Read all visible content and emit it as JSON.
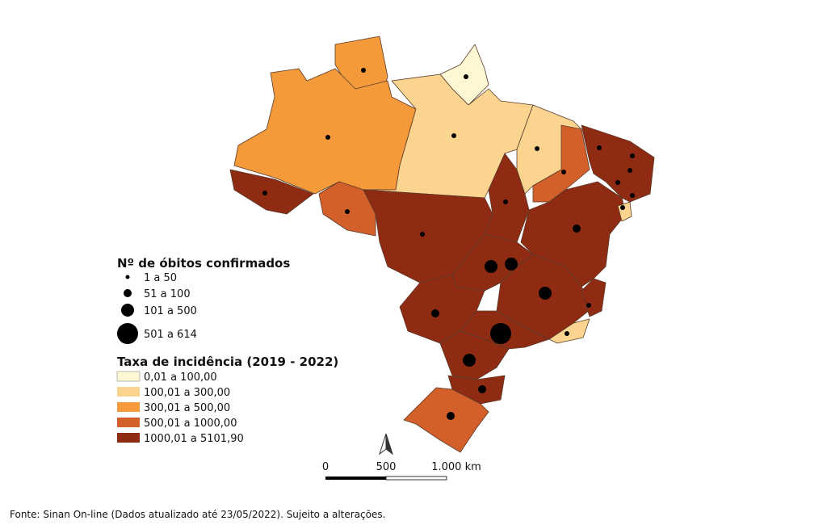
{
  "legend_deaths": {
    "title": "Nº de óbitos confirmados",
    "items": [
      "1 a 50",
      "51 a 100",
      "101 a 500",
      "501 a 614"
    ]
  },
  "legend_incidence": {
    "title": "Taxa de incidência (2019 - 2022)",
    "items": [
      "0,01 a 100,00",
      "100,01 a 300,00",
      "300,01 a 500,00",
      "500,01 a 1000,00",
      "1000,01 a 5101,90"
    ]
  },
  "scale_bar": {
    "labels": [
      "0",
      "500",
      "1.000 km"
    ]
  },
  "source": "Fonte: Sinan On-line (Dados atualizado até 23/05/2022). Sujeito a alterações."
}
